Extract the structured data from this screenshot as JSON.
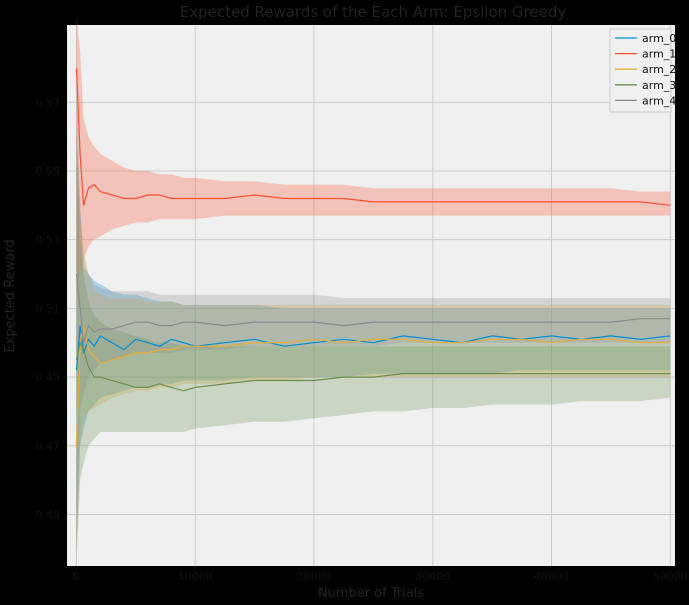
{
  "chart_data": {
    "type": "line",
    "title": "Expected Rewards of the Each Arm: Epsilon Greedy",
    "xlabel": "Number of Trials",
    "ylabel": "Expected Reward",
    "xlim": [
      -800,
      50400
    ],
    "ylim": [
      0.435,
      0.5925
    ],
    "xticks": [
      0,
      10000,
      20000,
      30000,
      40000,
      50000
    ],
    "xtick_labels": [
      "0",
      "10000",
      "20000",
      "30000",
      "40000",
      "50000"
    ],
    "yticks": [
      0.45,
      0.47,
      0.49,
      0.51,
      0.53,
      0.55,
      0.57
    ],
    "ytick_labels": [
      "0.45",
      "0.47",
      "0.49",
      "0.51",
      "0.53",
      "0.55",
      "0.57"
    ],
    "grid": true,
    "legend_position": "top-right",
    "x": [
      0,
      300,
      600,
      1000,
      1500,
      2000,
      3000,
      4000,
      5000,
      6000,
      7000,
      8000,
      9000,
      10000,
      12500,
      15000,
      17500,
      20000,
      22500,
      25000,
      27500,
      30000,
      32500,
      35000,
      37500,
      40000,
      42500,
      45000,
      47500,
      50000
    ],
    "series": [
      {
        "name": "arm_0",
        "color": "#008fd5",
        "values": [
          0.492,
          0.505,
          0.497,
          0.501,
          0.499,
          0.502,
          0.5,
          0.498,
          0.501,
          0.5,
          0.499,
          0.501,
          0.5,
          0.499,
          0.5,
          0.501,
          0.499,
          0.5,
          0.501,
          0.5,
          0.502,
          0.501,
          0.5,
          0.502,
          0.501,
          0.502,
          0.501,
          0.502,
          0.501,
          0.502
        ],
        "ci_lower": [
          0.44,
          0.47,
          0.475,
          0.48,
          0.482,
          0.484,
          0.485,
          0.486,
          0.487,
          0.487,
          0.488,
          0.488,
          0.489,
          0.489,
          0.489,
          0.49,
          0.49,
          0.49,
          0.49,
          0.491,
          0.491,
          0.491,
          0.491,
          0.491,
          0.492,
          0.492,
          0.492,
          0.492,
          0.492,
          0.492
        ],
        "ci_upper": [
          0.56,
          0.54,
          0.522,
          0.52,
          0.518,
          0.517,
          0.515,
          0.514,
          0.514,
          0.513,
          0.512,
          0.512,
          0.511,
          0.511,
          0.511,
          0.511,
          0.51,
          0.51,
          0.51,
          0.51,
          0.51,
          0.51,
          0.51,
          0.51,
          0.51,
          0.51,
          0.51,
          0.51,
          0.51,
          0.51
        ]
      },
      {
        "name": "arm_1",
        "color": "#fc4f30",
        "values": [
          0.58,
          0.555,
          0.54,
          0.545,
          0.546,
          0.544,
          0.543,
          0.542,
          0.542,
          0.543,
          0.543,
          0.542,
          0.542,
          0.542,
          0.542,
          0.543,
          0.542,
          0.542,
          0.542,
          0.541,
          0.541,
          0.541,
          0.541,
          0.541,
          0.541,
          0.541,
          0.541,
          0.541,
          0.541,
          0.54
        ],
        "ci_lower": [
          0.515,
          0.52,
          0.524,
          0.528,
          0.53,
          0.531,
          0.533,
          0.534,
          0.535,
          0.535,
          0.536,
          0.536,
          0.536,
          0.536,
          0.537,
          0.537,
          0.537,
          0.537,
          0.537,
          0.537,
          0.537,
          0.537,
          0.537,
          0.537,
          0.537,
          0.537,
          0.537,
          0.537,
          0.537,
          0.537
        ],
        "ci_upper": [
          0.595,
          0.585,
          0.565,
          0.56,
          0.557,
          0.555,
          0.553,
          0.551,
          0.55,
          0.55,
          0.549,
          0.549,
          0.548,
          0.548,
          0.547,
          0.547,
          0.546,
          0.546,
          0.546,
          0.545,
          0.545,
          0.545,
          0.545,
          0.545,
          0.545,
          0.545,
          0.545,
          0.545,
          0.544,
          0.544
        ]
      },
      {
        "name": "arm_2",
        "color": "#e5ae38",
        "values": [
          0.47,
          0.5,
          0.505,
          0.498,
          0.496,
          0.494,
          0.495,
          0.496,
          0.497,
          0.497,
          0.498,
          0.498,
          0.499,
          0.499,
          0.499,
          0.5,
          0.5,
          0.501,
          0.5,
          0.501,
          0.501,
          0.5,
          0.5,
          0.501,
          0.501,
          0.5,
          0.501,
          0.501,
          0.5,
          0.5
        ],
        "ci_lower": [
          0.436,
          0.47,
          0.478,
          0.48,
          0.481,
          0.482,
          0.484,
          0.485,
          0.486,
          0.486,
          0.487,
          0.487,
          0.488,
          0.488,
          0.488,
          0.489,
          0.489,
          0.49,
          0.49,
          0.49,
          0.49,
          0.49,
          0.49,
          0.49,
          0.49,
          0.49,
          0.49,
          0.49,
          0.49,
          0.49
        ],
        "ci_upper": [
          0.56,
          0.535,
          0.528,
          0.52,
          0.515,
          0.514,
          0.513,
          0.513,
          0.513,
          0.512,
          0.512,
          0.512,
          0.511,
          0.511,
          0.511,
          0.511,
          0.511,
          0.511,
          0.511,
          0.511,
          0.511,
          0.511,
          0.511,
          0.511,
          0.511,
          0.511,
          0.511,
          0.511,
          0.511,
          0.511
        ]
      },
      {
        "name": "arm_3",
        "color": "#6d904f",
        "values": [
          0.495,
          0.5,
          0.498,
          0.493,
          0.49,
          0.49,
          0.489,
          0.488,
          0.487,
          0.487,
          0.488,
          0.487,
          0.486,
          0.487,
          0.488,
          0.489,
          0.489,
          0.489,
          0.49,
          0.49,
          0.491,
          0.491,
          0.491,
          0.491,
          0.491,
          0.491,
          0.491,
          0.491,
          0.491,
          0.491
        ],
        "ci_lower": [
          0.436,
          0.46,
          0.465,
          0.47,
          0.472,
          0.474,
          0.474,
          0.474,
          0.474,
          0.474,
          0.474,
          0.474,
          0.474,
          0.475,
          0.476,
          0.477,
          0.477,
          0.478,
          0.479,
          0.48,
          0.48,
          0.481,
          0.481,
          0.482,
          0.482,
          0.482,
          0.483,
          0.483,
          0.483,
          0.484
        ],
        "ci_upper": [
          0.56,
          0.53,
          0.52,
          0.512,
          0.508,
          0.506,
          0.504,
          0.503,
          0.502,
          0.501,
          0.5,
          0.5,
          0.499,
          0.499,
          0.499,
          0.499,
          0.499,
          0.499,
          0.499,
          0.499,
          0.499,
          0.499,
          0.499,
          0.499,
          0.499,
          0.499,
          0.499,
          0.499,
          0.499,
          0.499
        ]
      },
      {
        "name": "arm_4",
        "color": "#8b8b8b",
        "values": [
          0.52,
          0.51,
          0.5,
          0.505,
          0.503,
          0.504,
          0.504,
          0.505,
          0.506,
          0.506,
          0.505,
          0.505,
          0.506,
          0.506,
          0.505,
          0.506,
          0.506,
          0.506,
          0.505,
          0.506,
          0.506,
          0.506,
          0.506,
          0.506,
          0.506,
          0.506,
          0.506,
          0.506,
          0.507,
          0.507
        ],
        "ci_lower": [
          0.44,
          0.48,
          0.485,
          0.49,
          0.492,
          0.494,
          0.495,
          0.496,
          0.497,
          0.497,
          0.497,
          0.497,
          0.498,
          0.498,
          0.498,
          0.499,
          0.499,
          0.499,
          0.499,
          0.499,
          0.5,
          0.5,
          0.5,
          0.5,
          0.5,
          0.5,
          0.5,
          0.5,
          0.5,
          0.5
        ],
        "ci_upper": [
          0.575,
          0.54,
          0.525,
          0.52,
          0.517,
          0.516,
          0.515,
          0.515,
          0.515,
          0.515,
          0.514,
          0.514,
          0.514,
          0.514,
          0.514,
          0.514,
          0.514,
          0.514,
          0.513,
          0.513,
          0.513,
          0.513,
          0.513,
          0.513,
          0.513,
          0.513,
          0.513,
          0.513,
          0.513,
          0.513
        ]
      }
    ]
  }
}
